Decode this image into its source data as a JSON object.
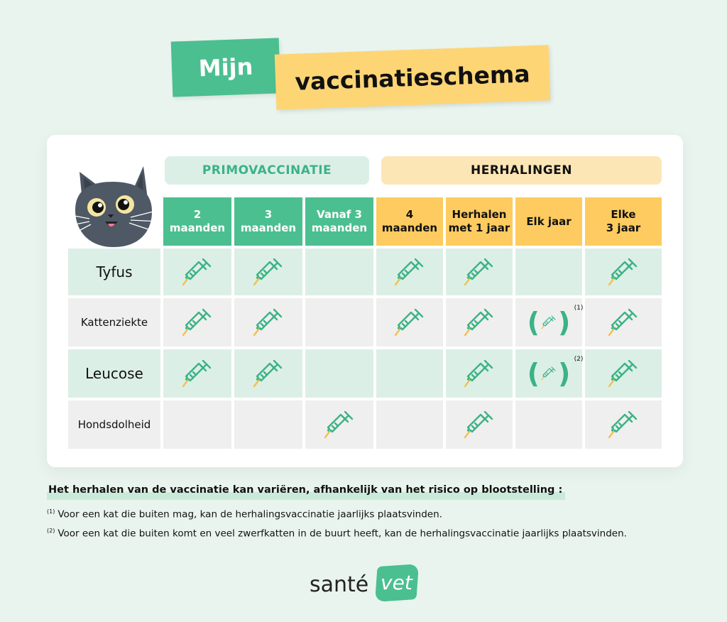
{
  "title": {
    "word1": "Mijn",
    "word2": "vaccinatieschema"
  },
  "groups": {
    "primo": "PRIMOVACCINATIE",
    "herhalingen": "HERHALINGEN"
  },
  "columns": [
    {
      "label": "2\nmaanden",
      "group": "primo"
    },
    {
      "label": "3\nmaanden",
      "group": "primo"
    },
    {
      "label": "Vanaf 3\nmaanden",
      "group": "primo"
    },
    {
      "label": "4\nmaanden",
      "group": "herhalingen"
    },
    {
      "label": "Herhalen\nmet 1 jaar",
      "group": "herhalingen"
    },
    {
      "label": "Elk jaar",
      "group": "herhalingen"
    },
    {
      "label": "Elke\n3 jaar",
      "group": "herhalingen"
    }
  ],
  "rows": [
    {
      "label": "Tyfus",
      "cells": [
        "syringe",
        "syringe",
        "",
        "syringe",
        "syringe",
        "",
        "syringe"
      ]
    },
    {
      "label": "Kattenziekte",
      "cells": [
        "syringe",
        "syringe",
        "",
        "syringe",
        "syringe",
        "optional",
        "syringe"
      ],
      "footnote": "(1)"
    },
    {
      "label": "Leucose",
      "cells": [
        "syringe",
        "syringe",
        "",
        "",
        "syringe",
        "optional",
        "syringe"
      ],
      "footnote": "(2)"
    },
    {
      "label": "Hondsdolheid",
      "cells": [
        "",
        "",
        "syringe",
        "",
        "syringe",
        "",
        "syringe"
      ]
    }
  ],
  "notes": {
    "heading": "Het herhalen van de vaccinatie kan variëren, afhankelijk van het risico op blootstelling :",
    "n1_mark": "(1)",
    "n1": "Voor een kat die buiten mag, kan de herhalingsvaccinatie jaarlijks plaatsvinden.",
    "n2_mark": "(2)",
    "n2": "Voor een kat die buiten komt en veel zwerfkatten in de buurt heeft, kan de herhalingsvaccinatie jaarlijks plaatsvinden."
  },
  "logo": {
    "part1": "santé",
    "part2": "vet"
  },
  "colors": {
    "green": "#4bbf90",
    "yellow": "#fdcb60",
    "lightgreen": "#dcefe6",
    "gray": "#efefef"
  },
  "icons": {
    "mark": "syringe-icon",
    "mascot": "cat-icon"
  }
}
